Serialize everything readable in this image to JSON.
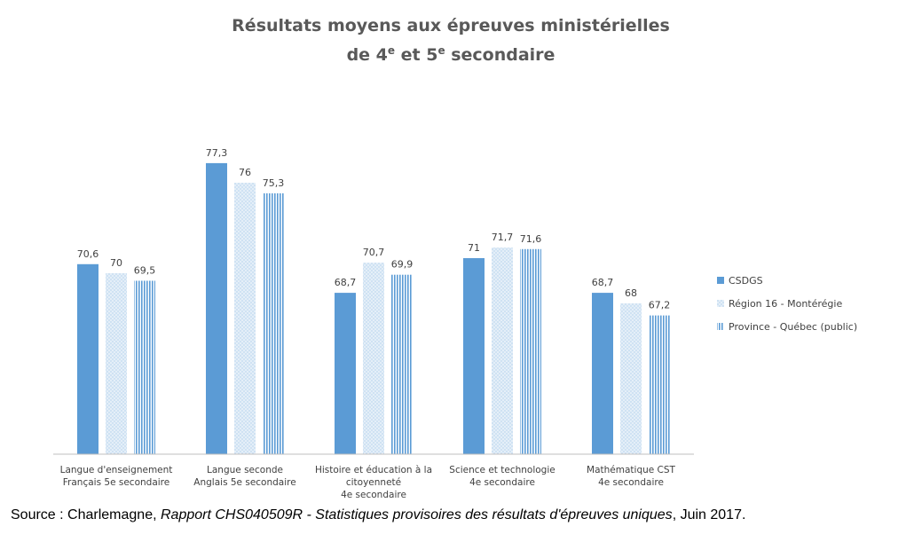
{
  "title_line1": "Résultats moyens aux épreuves ministérielles",
  "title_line2": {
    "de": "de 4",
    "sup1": "e",
    "et": " et 5",
    "sup2": "e",
    "rest": " secondaire"
  },
  "colors": {
    "csdgs": "#5b9bd5",
    "region": "#bdd7ee",
    "province": "#5b9bd5",
    "axis": "#bfbfbf"
  },
  "chart_data": {
    "type": "bar",
    "categories": [
      [
        "Langue d'enseignement",
        "Français 5e secondaire"
      ],
      [
        "Langue seconde",
        "Anglais 5e secondaire"
      ],
      [
        "Histoire et éducation à la",
        "citoyenneté",
        "4e secondaire"
      ],
      [
        "Science et technologie",
        "4e secondaire"
      ],
      [
        "Mathématique CST",
        "4e secondaire"
      ]
    ],
    "series": [
      {
        "name": "CSDGS",
        "values": [
          70.6,
          77.3,
          68.7,
          71,
          68.7
        ],
        "labels": [
          "70,6",
          "77,3",
          "68,7",
          "71",
          "68,7"
        ],
        "pattern": "solid"
      },
      {
        "name": "Région 16 - Montérégie",
        "values": [
          70,
          76,
          70.7,
          71.7,
          68
        ],
        "labels": [
          "70",
          "76",
          "70,7",
          "71,7",
          "68"
        ],
        "pattern": "dots"
      },
      {
        "name": "Province - Québec (public)",
        "values": [
          69.5,
          75.3,
          69.9,
          71.6,
          67.2
        ],
        "labels": [
          "69,5",
          "75,3",
          "69,9",
          "71,6",
          "67,2"
        ],
        "pattern": "stripes"
      }
    ],
    "ylim": [
      58,
      78
    ],
    "legend": "right",
    "grid": false
  },
  "source": {
    "prefix": "Source : Charlemagne, ",
    "italic": "Rapport CHS040509R - Statistiques provisoires des résultats d'épreuves uniques",
    "suffix": ", Juin 2017."
  }
}
